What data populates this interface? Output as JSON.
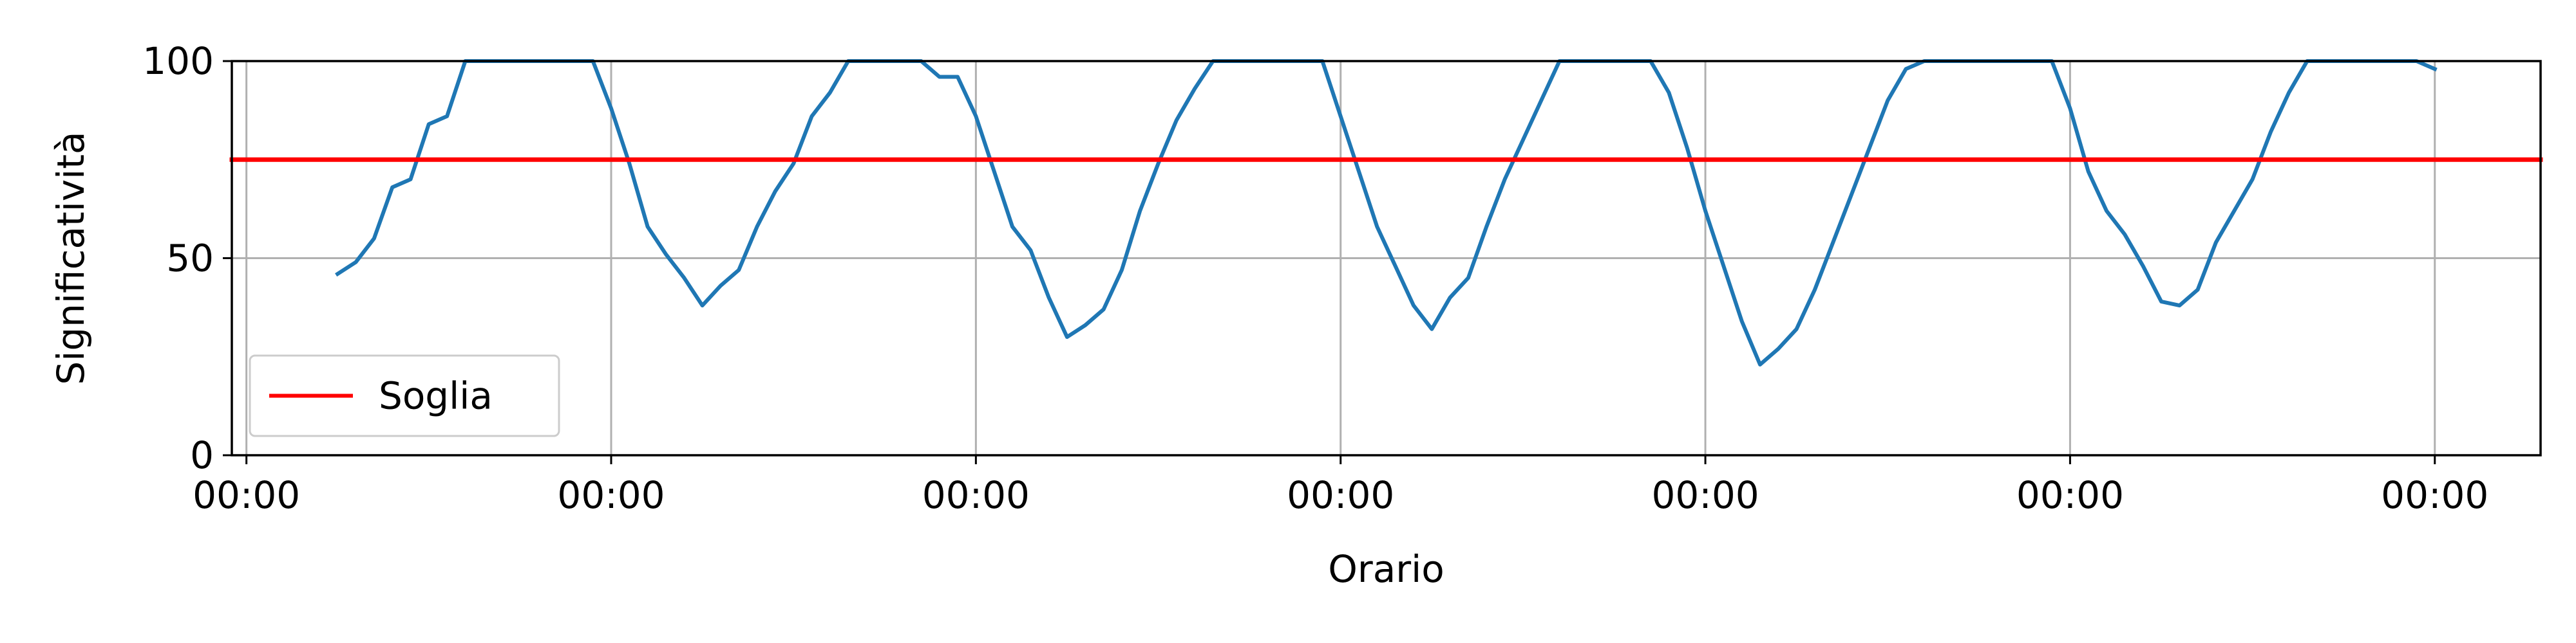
{
  "chart_data": {
    "type": "line",
    "title": "",
    "xlabel": "Orario",
    "ylabel": "Significatività",
    "ylim": [
      0,
      100
    ],
    "xlim": [
      -0.04,
      6.29
    ],
    "x_ticks": [
      0,
      1,
      2,
      3,
      4,
      5,
      6
    ],
    "x_tick_labels": [
      "00:00",
      "00:00",
      "00:00",
      "00:00",
      "00:00",
      "00:00",
      "00:00"
    ],
    "y_ticks": [
      0,
      50,
      100
    ],
    "y_tick_labels": [
      "0",
      "50",
      "100"
    ],
    "grid": true,
    "legend": {
      "placement": "lower-left",
      "entries": [
        {
          "label": "Soglia",
          "color": "#ff0000"
        }
      ]
    },
    "series": [
      {
        "color": "#1f77b4",
        "x": [
          0.25,
          0.3,
          0.35,
          0.4,
          0.45,
          0.5,
          0.55,
          0.6,
          0.65,
          0.7,
          0.75,
          0.8,
          0.85,
          0.9,
          0.95,
          1.0,
          1.05,
          1.1,
          1.15,
          1.2,
          1.25,
          1.3,
          1.35,
          1.4,
          1.45,
          1.5,
          1.55,
          1.6,
          1.65,
          1.7,
          1.75,
          1.8,
          1.85,
          1.9,
          1.95,
          2.0,
          2.05,
          2.1,
          2.15,
          2.2,
          2.25,
          2.3,
          2.35,
          2.4,
          2.45,
          2.5,
          2.55,
          2.6,
          2.65,
          2.7,
          2.75,
          2.8,
          2.85,
          2.9,
          2.95,
          3.0,
          3.05,
          3.1,
          3.15,
          3.2,
          3.25,
          3.3,
          3.35,
          3.4,
          3.45,
          3.5,
          3.55,
          3.6,
          3.65,
          3.7,
          3.75,
          3.8,
          3.85,
          3.9,
          3.95,
          4.0,
          4.05,
          4.1,
          4.15,
          4.2,
          4.25,
          4.3,
          4.35,
          4.4,
          4.45,
          4.5,
          4.55,
          4.6,
          4.65,
          4.7,
          4.75,
          4.8,
          4.85,
          4.9,
          4.95,
          5.0,
          5.05,
          5.1,
          5.15,
          5.2,
          5.25,
          5.3,
          5.35,
          5.4,
          5.45,
          5.5,
          5.55,
          5.6,
          5.65,
          5.7,
          5.75,
          5.8,
          5.85,
          5.9,
          5.95,
          6.0
        ],
        "y": [
          46,
          49,
          55,
          68,
          70,
          84,
          86,
          100,
          100,
          100,
          100,
          100,
          100,
          100,
          100,
          88,
          74,
          58,
          51,
          45,
          38,
          43,
          47,
          58,
          67,
          74,
          86,
          92,
          100,
          100,
          100,
          100,
          100,
          96,
          96,
          86,
          72,
          58,
          52,
          40,
          30,
          33,
          37,
          47,
          62,
          74,
          85,
          93,
          100,
          100,
          100,
          100,
          100,
          100,
          100,
          86,
          72,
          58,
          48,
          38,
          32,
          40,
          45,
          58,
          70,
          80,
          90,
          100,
          100,
          100,
          100,
          100,
          100,
          92,
          78,
          62,
          48,
          34,
          23,
          27,
          32,
          42,
          54,
          66,
          78,
          90,
          98,
          100,
          100,
          100,
          100,
          100,
          100,
          100,
          100,
          88,
          72,
          62,
          56,
          48,
          39,
          38,
          42,
          54,
          62,
          70,
          82,
          92,
          100,
          100,
          100,
          100,
          100,
          100,
          100,
          98
        ]
      },
      {
        "name": "Soglia",
        "color": "#ff0000",
        "x": [
          -0.04,
          6.29
        ],
        "y": [
          75,
          75
        ]
      }
    ]
  }
}
